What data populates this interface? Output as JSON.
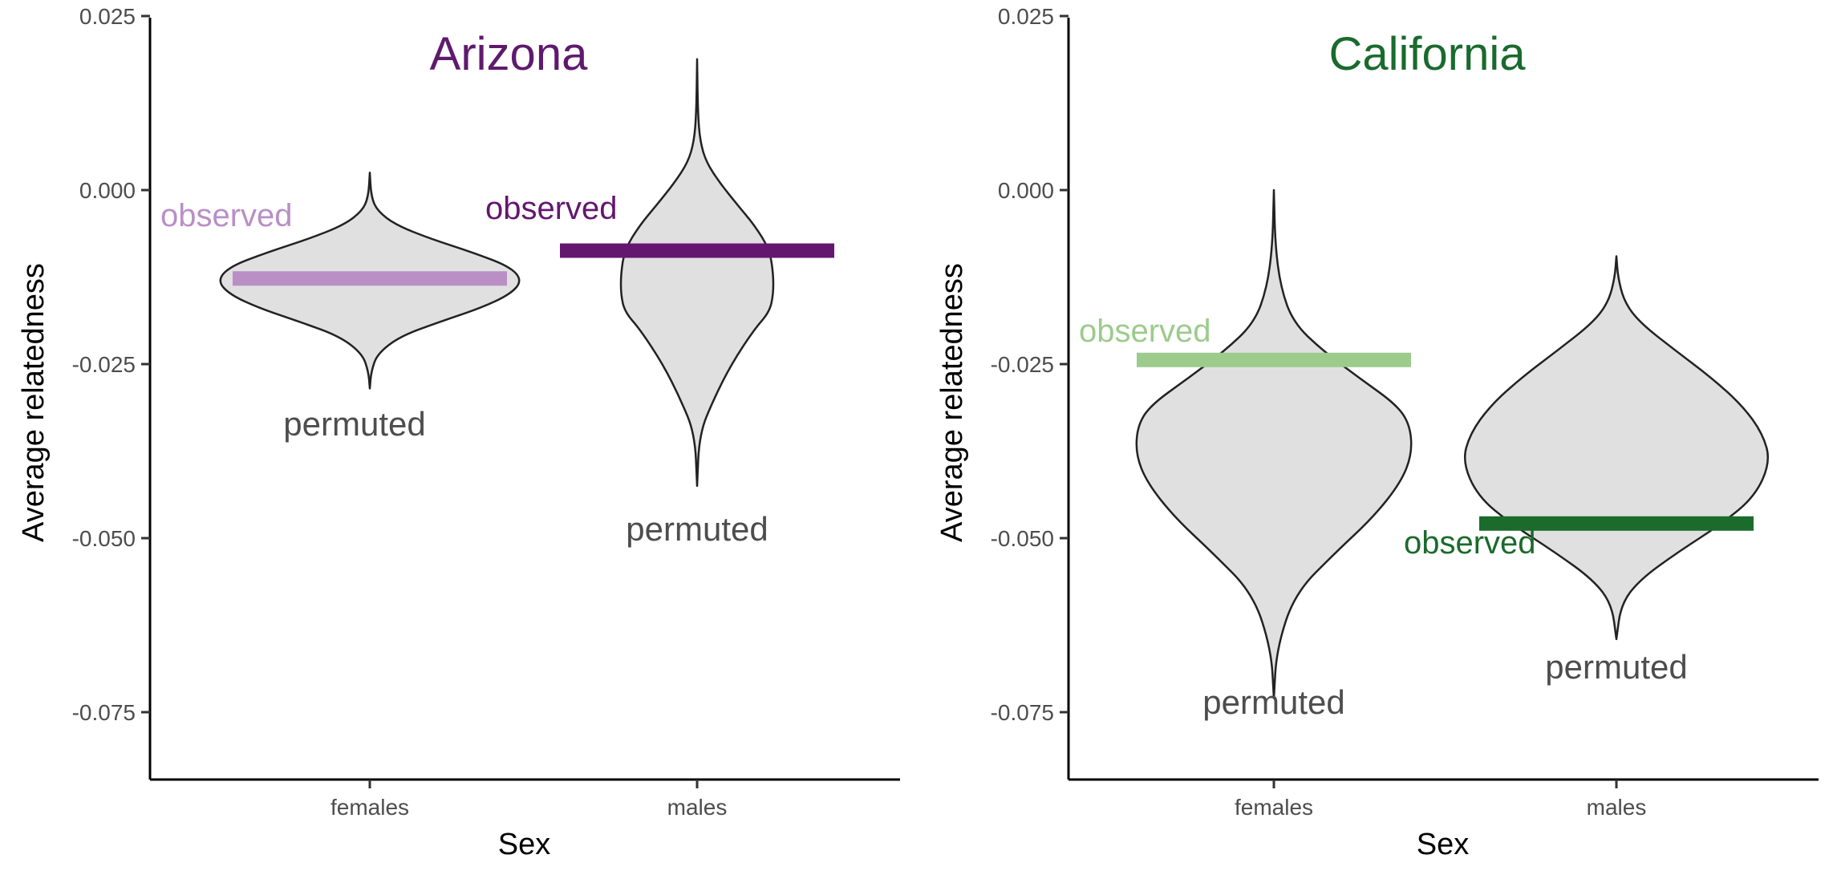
{
  "chart_data": [
    {
      "type": "violin",
      "title": "Arizona",
      "title_color": "#5e1a6d",
      "xlabel": "Sex",
      "ylabel": "Average relatedness",
      "ylim": [
        -0.085,
        0.025
      ],
      "y_ticks": [
        0.025,
        0.0,
        -0.025,
        -0.05,
        -0.075
      ],
      "y_tick_labels": [
        "0.025",
        "0.000",
        "-0.025",
        "-0.050",
        "-0.075"
      ],
      "categories": [
        "females",
        "males"
      ],
      "permuted_label": "permuted",
      "observed_label": "observed",
      "groups": [
        {
          "category": "females",
          "observed": -0.0127,
          "observed_color": "#b98fc6",
          "permuted_range": [
            -0.0285,
            0.0025
          ],
          "violin_profile": [
            [
              -0.0285,
              0.0
            ],
            [
              -0.026,
              0.01
            ],
            [
              -0.0235,
              0.05
            ],
            [
              -0.021,
              0.2
            ],
            [
              -0.019,
              0.45
            ],
            [
              -0.017,
              0.72
            ],
            [
              -0.015,
              0.92
            ],
            [
              -0.013,
              1.0
            ],
            [
              -0.011,
              0.92
            ],
            [
              -0.009,
              0.68
            ],
            [
              -0.007,
              0.4
            ],
            [
              -0.005,
              0.17
            ],
            [
              -0.003,
              0.05
            ],
            [
              -0.001,
              0.01
            ],
            [
              0.0025,
              0.0
            ]
          ]
        },
        {
          "category": "males",
          "observed": -0.0087,
          "observed_color": "#63176f",
          "permuted_range": [
            -0.0425,
            0.0188
          ],
          "violin_profile": [
            [
              -0.0425,
              0.0
            ],
            [
              -0.035,
              0.03
            ],
            [
              -0.03,
              0.22
            ],
            [
              -0.025,
              0.45
            ],
            [
              -0.02,
              0.75
            ],
            [
              -0.0175,
              0.95
            ],
            [
              -0.015,
              1.0
            ],
            [
              -0.012,
              1.0
            ],
            [
              -0.0085,
              0.95
            ],
            [
              -0.005,
              0.75
            ],
            [
              -0.002,
              0.52
            ],
            [
              0.001,
              0.3
            ],
            [
              0.004,
              0.12
            ],
            [
              0.007,
              0.04
            ],
            [
              0.011,
              0.01
            ],
            [
              0.0188,
              0.0
            ]
          ]
        }
      ]
    },
    {
      "type": "violin",
      "title": "California",
      "title_color": "#1a6a2e",
      "xlabel": "Sex",
      "ylabel": "Average relatedness",
      "ylim": [
        -0.085,
        0.025
      ],
      "y_ticks": [
        0.025,
        0.0,
        -0.025,
        -0.05,
        -0.075
      ],
      "y_tick_labels": [
        "0.025",
        "0.000",
        "-0.025",
        "-0.050",
        "-0.075"
      ],
      "categories": [
        "females",
        "males"
      ],
      "permuted_label": "permuted",
      "observed_label": "observed",
      "groups": [
        {
          "category": "females",
          "observed": -0.0244,
          "observed_color": "#9ccb8c",
          "permuted_range": [
            -0.073,
            0.0
          ],
          "violin_profile": [
            [
              -0.073,
              0.0
            ],
            [
              -0.066,
              0.02
            ],
            [
              -0.058,
              0.15
            ],
            [
              -0.052,
              0.45
            ],
            [
              -0.047,
              0.72
            ],
            [
              -0.042,
              0.92
            ],
            [
              -0.038,
              1.0
            ],
            [
              -0.034,
              0.99
            ],
            [
              -0.031,
              0.9
            ],
            [
              -0.027,
              0.62
            ],
            [
              -0.023,
              0.35
            ],
            [
              -0.019,
              0.14
            ],
            [
              -0.014,
              0.05
            ],
            [
              -0.008,
              0.01
            ],
            [
              0.0,
              0.0
            ]
          ]
        },
        {
          "category": "males",
          "observed": -0.0479,
          "observed_color": "#1b6b2c",
          "permuted_range": [
            -0.0645,
            -0.0095
          ],
          "violin_profile": [
            [
              -0.0645,
              0.0
            ],
            [
              -0.0595,
              0.03
            ],
            [
              -0.056,
              0.15
            ],
            [
              -0.052,
              0.4
            ],
            [
              -0.048,
              0.68
            ],
            [
              -0.044,
              0.9
            ],
            [
              -0.039,
              1.0
            ],
            [
              -0.035,
              0.95
            ],
            [
              -0.031,
              0.82
            ],
            [
              -0.027,
              0.62
            ],
            [
              -0.023,
              0.38
            ],
            [
              -0.019,
              0.15
            ],
            [
              -0.016,
              0.05
            ],
            [
              -0.0125,
              0.01
            ],
            [
              -0.0095,
              0.0
            ]
          ]
        }
      ]
    }
  ]
}
